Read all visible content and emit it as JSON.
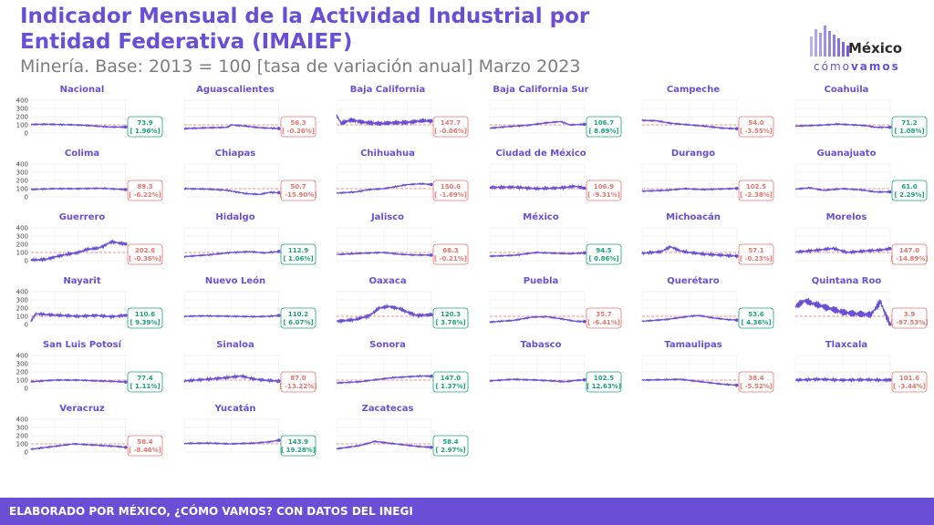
{
  "header": {
    "title": "Indicador Mensual de la Actividad Industrial por Entidad Federativa (IMAIEF)",
    "subtitle": "Minería. Base: 2013 = 100 [tasa de variación anual] Marzo 2023"
  },
  "logo": {
    "word": "México",
    "tag_light": "cómo",
    "tag_bold": "vamos"
  },
  "footer": {
    "text": "ELABORADO POR MÉXICO, ¿CÓMO VAMOS? CON DATOS DEL INEGI"
  },
  "colors": {
    "title": "#6a4fd6",
    "line": "#6a4fd6",
    "reference": "#e8746c",
    "positive": "#1aa37a",
    "negative": "#e8746c",
    "footer_bg": "#6a4fd6"
  },
  "chart_data": {
    "type": "line",
    "facets": "small-multiples",
    "x_ticks": [
      "2003",
      "2008",
      "2013",
      "2018",
      "2023"
    ],
    "y_ticks": [
      "0",
      "100",
      "200",
      "300",
      "400"
    ],
    "xlim": [
      2003,
      2023.25
    ],
    "ylim": [
      0,
      400
    ],
    "reference_line": 100,
    "grid": true,
    "panels": [
      {
        "name": "Nacional",
        "value": "73.9",
        "change": "1.96%",
        "positive": true,
        "anchors": [
          [
            2003,
            105
          ],
          [
            2006,
            108
          ],
          [
            2009,
            104
          ],
          [
            2012,
            100
          ],
          [
            2015,
            93
          ],
          [
            2018,
            80
          ],
          [
            2020,
            74
          ],
          [
            2023,
            74
          ]
        ]
      },
      {
        "name": "Aguascalientes",
        "value": "56.3",
        "change": "-0.26%",
        "positive": false,
        "anchors": [
          [
            2003,
            55
          ],
          [
            2008,
            65
          ],
          [
            2012,
            70
          ],
          [
            2013,
            100
          ],
          [
            2016,
            85
          ],
          [
            2019,
            65
          ],
          [
            2023,
            56
          ]
        ]
      },
      {
        "name": "Baja California",
        "value": "147.7",
        "change": "-0.06%",
        "positive": false,
        "noise": 28,
        "anchors": [
          [
            2003,
            210
          ],
          [
            2004,
            120
          ],
          [
            2006,
            160
          ],
          [
            2009,
            130
          ],
          [
            2012,
            115
          ],
          [
            2015,
            125
          ],
          [
            2018,
            130
          ],
          [
            2021,
            150
          ],
          [
            2023,
            148
          ]
        ]
      },
      {
        "name": "Baja California Sur",
        "value": "106.7",
        "change": "8.89%",
        "positive": true,
        "anchors": [
          [
            2003,
            60
          ],
          [
            2007,
            80
          ],
          [
            2011,
            95
          ],
          [
            2015,
            125
          ],
          [
            2018,
            140
          ],
          [
            2020,
            100
          ],
          [
            2023,
            107
          ]
        ]
      },
      {
        "name": "Campeche",
        "value": "54.0",
        "change": "-3.55%",
        "positive": false,
        "anchors": [
          [
            2003,
            155
          ],
          [
            2006,
            150
          ],
          [
            2009,
            120
          ],
          [
            2013,
            100
          ],
          [
            2017,
            80
          ],
          [
            2020,
            60
          ],
          [
            2023,
            54
          ]
        ]
      },
      {
        "name": "Coahuila",
        "value": "71.2",
        "change": "1.08%",
        "positive": true,
        "anchors": [
          [
            2003,
            85
          ],
          [
            2008,
            95
          ],
          [
            2012,
            110
          ],
          [
            2015,
            100
          ],
          [
            2018,
            90
          ],
          [
            2020,
            70
          ],
          [
            2023,
            71
          ]
        ]
      },
      {
        "name": "Colima",
        "value": "89.3",
        "change": "-6.22%",
        "positive": false,
        "anchors": [
          [
            2003,
            90
          ],
          [
            2008,
            100
          ],
          [
            2013,
            100
          ],
          [
            2018,
            105
          ],
          [
            2021,
            95
          ],
          [
            2023,
            89
          ]
        ]
      },
      {
        "name": "Chiapas",
        "value": "50.7",
        "change": "-15.90%",
        "positive": false,
        "anchors": [
          [
            2003,
            100
          ],
          [
            2008,
            95
          ],
          [
            2012,
            80
          ],
          [
            2016,
            40
          ],
          [
            2019,
            30
          ],
          [
            2021,
            55
          ],
          [
            2023,
            51
          ]
        ]
      },
      {
        "name": "Chihuahua",
        "value": "150.6",
        "change": "-1.69%",
        "positive": false,
        "anchors": [
          [
            2003,
            45
          ],
          [
            2007,
            60
          ],
          [
            2010,
            90
          ],
          [
            2013,
            100
          ],
          [
            2016,
            130
          ],
          [
            2018,
            150
          ],
          [
            2021,
            160
          ],
          [
            2023,
            151
          ]
        ]
      },
      {
        "name": "Ciudad de México",
        "value": "106.9",
        "change": "-9.31%",
        "positive": false,
        "noise": 14,
        "anchors": [
          [
            2003,
            115
          ],
          [
            2008,
            120
          ],
          [
            2013,
            100
          ],
          [
            2018,
            110
          ],
          [
            2021,
            130
          ],
          [
            2023,
            107
          ]
        ]
      },
      {
        "name": "Durango",
        "value": "102.5",
        "change": "-2.38%",
        "positive": false,
        "anchors": [
          [
            2003,
            70
          ],
          [
            2008,
            80
          ],
          [
            2012,
            100
          ],
          [
            2016,
            90
          ],
          [
            2019,
            95
          ],
          [
            2023,
            103
          ]
        ]
      },
      {
        "name": "Guanajuato",
        "value": "61.0",
        "change": "2.29%",
        "positive": true,
        "anchors": [
          [
            2003,
            95
          ],
          [
            2006,
            110
          ],
          [
            2009,
            80
          ],
          [
            2013,
            100
          ],
          [
            2017,
            85
          ],
          [
            2020,
            60
          ],
          [
            2023,
            61
          ]
        ]
      },
      {
        "name": "Guerrero",
        "value": "202.6",
        "change": "-0.36%",
        "positive": false,
        "noise": 16,
        "anchors": [
          [
            2003,
            5
          ],
          [
            2006,
            15
          ],
          [
            2009,
            60
          ],
          [
            2011,
            80
          ],
          [
            2013,
            100
          ],
          [
            2015,
            140
          ],
          [
            2017,
            150
          ],
          [
            2018,
            170
          ],
          [
            2020,
            230
          ],
          [
            2023,
            203
          ]
        ]
      },
      {
        "name": "Hidalgo",
        "value": "112.9",
        "change": "1.06%",
        "positive": true,
        "anchors": [
          [
            2003,
            50
          ],
          [
            2008,
            70
          ],
          [
            2013,
            100
          ],
          [
            2017,
            110
          ],
          [
            2020,
            95
          ],
          [
            2023,
            113
          ]
        ]
      },
      {
        "name": "Jalisco",
        "value": "68.3",
        "change": "-0.21%",
        "positive": false,
        "anchors": [
          [
            2003,
            75
          ],
          [
            2008,
            90
          ],
          [
            2013,
            100
          ],
          [
            2016,
            80
          ],
          [
            2019,
            70
          ],
          [
            2023,
            68
          ]
        ]
      },
      {
        "name": "México",
        "value": "94.5",
        "change": "0.86%",
        "positive": true,
        "anchors": [
          [
            2003,
            55
          ],
          [
            2008,
            65
          ],
          [
            2013,
            100
          ],
          [
            2017,
            90
          ],
          [
            2020,
            85
          ],
          [
            2023,
            95
          ]
        ]
      },
      {
        "name": "Michoacán",
        "value": "57.1",
        "change": "-0.23%",
        "positive": false,
        "noise": 14,
        "anchors": [
          [
            2003,
            90
          ],
          [
            2007,
            110
          ],
          [
            2009,
            170
          ],
          [
            2011,
            120
          ],
          [
            2013,
            100
          ],
          [
            2016,
            80
          ],
          [
            2019,
            70
          ],
          [
            2023,
            57
          ]
        ]
      },
      {
        "name": "Morelos",
        "value": "147.0",
        "change": "-14.89%",
        "positive": false,
        "noise": 14,
        "anchors": [
          [
            2003,
            105
          ],
          [
            2008,
            130
          ],
          [
            2011,
            150
          ],
          [
            2014,
            100
          ],
          [
            2018,
            120
          ],
          [
            2021,
            130
          ],
          [
            2023,
            147
          ]
        ]
      },
      {
        "name": "Nayarit",
        "value": "110.6",
        "change": "9.39%",
        "positive": true,
        "noise": 14,
        "anchors": [
          [
            2003,
            40
          ],
          [
            2004,
            130
          ],
          [
            2008,
            115
          ],
          [
            2013,
            100
          ],
          [
            2017,
            110
          ],
          [
            2020,
            95
          ],
          [
            2023,
            111
          ]
        ]
      },
      {
        "name": "Nuevo León",
        "value": "110.2",
        "change": "6.07%",
        "positive": true,
        "anchors": [
          [
            2003,
            100
          ],
          [
            2008,
            105
          ],
          [
            2013,
            100
          ],
          [
            2018,
            95
          ],
          [
            2021,
            100
          ],
          [
            2023,
            110
          ]
        ]
      },
      {
        "name": "Oaxaca",
        "value": "120.3",
        "change": "3.78%",
        "positive": true,
        "noise": 20,
        "anchors": [
          [
            2003,
            40
          ],
          [
            2007,
            60
          ],
          [
            2010,
            110
          ],
          [
            2012,
            200
          ],
          [
            2014,
            220
          ],
          [
            2016,
            200
          ],
          [
            2018,
            150
          ],
          [
            2020,
            110
          ],
          [
            2023,
            120
          ]
        ]
      },
      {
        "name": "Puebla",
        "value": "35.7",
        "change": "-6.41%",
        "positive": false,
        "anchors": [
          [
            2003,
            30
          ],
          [
            2008,
            50
          ],
          [
            2012,
            90
          ],
          [
            2015,
            95
          ],
          [
            2018,
            70
          ],
          [
            2021,
            40
          ],
          [
            2023,
            36
          ]
        ]
      },
      {
        "name": "Querétaro",
        "value": "53.6",
        "change": "4.36%",
        "positive": true,
        "anchors": [
          [
            2003,
            40
          ],
          [
            2008,
            60
          ],
          [
            2013,
            100
          ],
          [
            2015,
            110
          ],
          [
            2018,
            80
          ],
          [
            2021,
            60
          ],
          [
            2023,
            54
          ]
        ]
      },
      {
        "name": "Quintana Roo",
        "value": "3.9",
        "change": "-97.53%",
        "positive": false,
        "noise": 45,
        "anchors": [
          [
            2003,
            220
          ],
          [
            2005,
            290
          ],
          [
            2007,
            250
          ],
          [
            2010,
            200
          ],
          [
            2013,
            150
          ],
          [
            2016,
            130
          ],
          [
            2019,
            120
          ],
          [
            2021,
            280
          ],
          [
            2022,
            130
          ],
          [
            2023,
            4
          ]
        ]
      },
      {
        "name": "San Luis Potosí",
        "value": "77.4",
        "change": "1.11%",
        "positive": true,
        "anchors": [
          [
            2003,
            80
          ],
          [
            2008,
            100
          ],
          [
            2013,
            100
          ],
          [
            2017,
            90
          ],
          [
            2020,
            85
          ],
          [
            2023,
            77
          ]
        ]
      },
      {
        "name": "Sinaloa",
        "value": "87.0",
        "change": "-13.22%",
        "positive": false,
        "noise": 14,
        "anchors": [
          [
            2003,
            90
          ],
          [
            2008,
            110
          ],
          [
            2012,
            130
          ],
          [
            2015,
            150
          ],
          [
            2018,
            110
          ],
          [
            2021,
            95
          ],
          [
            2023,
            87
          ]
        ]
      },
      {
        "name": "Sonora",
        "value": "147.0",
        "change": "1.37%",
        "positive": true,
        "anchors": [
          [
            2003,
            65
          ],
          [
            2008,
            80
          ],
          [
            2012,
            110
          ],
          [
            2015,
            130
          ],
          [
            2018,
            140
          ],
          [
            2021,
            150
          ],
          [
            2023,
            147
          ]
        ]
      },
      {
        "name": "Tabasco",
        "value": "102.5",
        "change": "12.63%",
        "positive": true,
        "anchors": [
          [
            2003,
            90
          ],
          [
            2008,
            110
          ],
          [
            2013,
            100
          ],
          [
            2016,
            90
          ],
          [
            2019,
            80
          ],
          [
            2021,
            95
          ],
          [
            2023,
            103
          ]
        ]
      },
      {
        "name": "Tamaulipas",
        "value": "38.4",
        "change": "-5.52%",
        "positive": false,
        "anchors": [
          [
            2003,
            100
          ],
          [
            2008,
            105
          ],
          [
            2011,
            110
          ],
          [
            2014,
            90
          ],
          [
            2017,
            70
          ],
          [
            2020,
            50
          ],
          [
            2023,
            38
          ]
        ]
      },
      {
        "name": "Tlaxcala",
        "value": "101.6",
        "change": "-3.44%",
        "positive": false,
        "noise": 14,
        "anchors": [
          [
            2003,
            100
          ],
          [
            2008,
            110
          ],
          [
            2013,
            100
          ],
          [
            2018,
            105
          ],
          [
            2021,
            100
          ],
          [
            2023,
            102
          ]
        ]
      },
      {
        "name": "Veracruz",
        "value": "58.4",
        "change": "-8.46%",
        "positive": false,
        "anchors": [
          [
            2003,
            35
          ],
          [
            2008,
            70
          ],
          [
            2012,
            100
          ],
          [
            2015,
            90
          ],
          [
            2018,
            80
          ],
          [
            2021,
            70
          ],
          [
            2023,
            58
          ]
        ]
      },
      {
        "name": "Yucatán",
        "value": "143.9",
        "change": "19.28%",
        "positive": true,
        "anchors": [
          [
            2003,
            105
          ],
          [
            2008,
            110
          ],
          [
            2013,
            100
          ],
          [
            2018,
            110
          ],
          [
            2021,
            125
          ],
          [
            2023,
            144
          ]
        ]
      },
      {
        "name": "Zacatecas",
        "value": "58.4",
        "change": "2.97%",
        "positive": true,
        "anchors": [
          [
            2003,
            40
          ],
          [
            2008,
            80
          ],
          [
            2011,
            130
          ],
          [
            2014,
            110
          ],
          [
            2017,
            90
          ],
          [
            2020,
            70
          ],
          [
            2023,
            58
          ]
        ]
      }
    ]
  }
}
